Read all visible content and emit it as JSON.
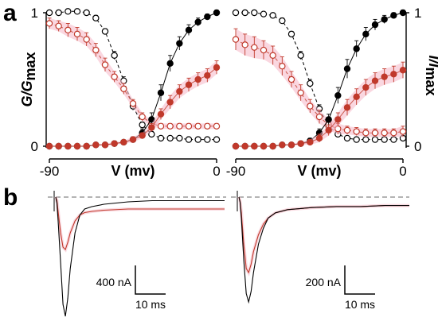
{
  "panel_a_letter": "a",
  "panel_b_letter": "b",
  "left_ylabel_main": "G/G",
  "left_ylabel_sub": "max",
  "right_ylabel_main": "I/I",
  "right_ylabel_sub": "max",
  "scale_left_current": "400 nA",
  "scale_left_time": "10 ms",
  "scale_right_current": "200 nA",
  "scale_right_time": "10 ms",
  "colors": {
    "control": "#000000",
    "treated": "#c0392b",
    "error_shade": "#f5b7c6",
    "dashed_ref": "#888888"
  },
  "chart_data": [
    {
      "type": "scatter",
      "panel": "a-left",
      "title": "",
      "xlabel": "V (mv)",
      "ylabel": "G/Gmax",
      "xlim": [
        -90,
        0
      ],
      "ylim": [
        0,
        1
      ],
      "xticks": [
        -90,
        0
      ],
      "yticks": [
        0,
        1
      ],
      "grid": false,
      "x": [
        -90,
        -85,
        -80,
        -75,
        -70,
        -65,
        -60,
        -55,
        -50,
        -45,
        -40,
        -35,
        -30,
        -25,
        -20,
        -15,
        -10,
        -5,
        0
      ],
      "series": [
        {
          "style": "open-black-circles",
          "fit": "dashed-boltzmann",
          "values": [
            1.0,
            1.0,
            1.01,
            1.01,
            1.0,
            0.96,
            0.86,
            0.68,
            0.49,
            0.3,
            0.16,
            0.09,
            0.06,
            0.06,
            0.06,
            0.05,
            0.05,
            0.05,
            0.05
          ],
          "errors": [
            0.01,
            0.01,
            0.01,
            0.01,
            0.01,
            0.02,
            0.02,
            0.03,
            0.03,
            0.03,
            0.02,
            0.02,
            0.01,
            0.01,
            0.01,
            0.01,
            0.01,
            0.01,
            0.01
          ]
        },
        {
          "style": "open-red-circles",
          "fit": "dashed-boltzmann",
          "values": [
            0.92,
            0.9,
            0.87,
            0.84,
            0.8,
            0.72,
            0.61,
            0.52,
            0.43,
            0.32,
            0.22,
            0.17,
            0.15,
            0.15,
            0.15,
            0.15,
            0.15,
            0.15,
            0.15
          ],
          "errors": [
            0.04,
            0.04,
            0.05,
            0.05,
            0.05,
            0.05,
            0.05,
            0.04,
            0.04,
            0.03,
            0.03,
            0.02,
            0.02,
            0.02,
            0.02,
            0.02,
            0.02,
            0.02,
            0.02
          ]
        },
        {
          "style": "filled-black-circles",
          "fit": "solid-boltzmann",
          "values": [
            0.0,
            0.0,
            0.0,
            0.0,
            0.0,
            0.01,
            0.01,
            0.02,
            0.03,
            0.05,
            0.1,
            0.2,
            0.4,
            0.62,
            0.77,
            0.87,
            0.93,
            0.97,
            1.0
          ],
          "errors": [
            0.0,
            0.0,
            0.0,
            0.0,
            0.0,
            0.0,
            0.01,
            0.01,
            0.01,
            0.02,
            0.03,
            0.05,
            0.06,
            0.06,
            0.05,
            0.04,
            0.03,
            0.02,
            0.02
          ]
        },
        {
          "style": "filled-red-circles",
          "fit": "solid-boltzmann",
          "values": [
            0.0,
            0.0,
            0.0,
            0.0,
            0.0,
            0.01,
            0.01,
            0.02,
            0.03,
            0.05,
            0.08,
            0.14,
            0.24,
            0.33,
            0.41,
            0.46,
            0.5,
            0.53,
            0.59
          ],
          "errors": [
            0.0,
            0.0,
            0.0,
            0.0,
            0.0,
            0.0,
            0.01,
            0.01,
            0.01,
            0.02,
            0.02,
            0.03,
            0.04,
            0.05,
            0.05,
            0.05,
            0.05,
            0.05,
            0.05
          ]
        }
      ]
    },
    {
      "type": "scatter",
      "panel": "a-right",
      "title": "",
      "xlabel": "V (mv)",
      "ylabel": "I/Imax",
      "xlim": [
        -90,
        0
      ],
      "ylim": [
        0,
        1
      ],
      "xticks": [
        -90,
        0
      ],
      "yticks": [
        0,
        1
      ],
      "grid": false,
      "x": [
        -90,
        -85,
        -80,
        -75,
        -70,
        -65,
        -60,
        -55,
        -50,
        -45,
        -40,
        -35,
        -30,
        -25,
        -20,
        -15,
        -10,
        -5,
        0
      ],
      "series": [
        {
          "style": "open-black-circles",
          "fit": "dashed-boltzmann",
          "values": [
            1.0,
            1.0,
            1.0,
            0.99,
            0.98,
            0.94,
            0.84,
            0.68,
            0.47,
            0.28,
            0.15,
            0.09,
            0.06,
            0.05,
            0.05,
            0.05,
            0.05,
            0.05,
            0.06
          ],
          "errors": [
            0.01,
            0.01,
            0.01,
            0.01,
            0.01,
            0.02,
            0.02,
            0.03,
            0.03,
            0.03,
            0.02,
            0.02,
            0.01,
            0.01,
            0.01,
            0.01,
            0.01,
            0.01,
            0.01
          ]
        },
        {
          "style": "open-red-circles",
          "fit": "dashed-boltzmann",
          "values": [
            0.8,
            0.76,
            0.74,
            0.72,
            0.68,
            0.6,
            0.5,
            0.4,
            0.3,
            0.22,
            0.16,
            0.13,
            0.12,
            0.11,
            0.1,
            0.1,
            0.1,
            0.1,
            0.11
          ],
          "errors": [
            0.08,
            0.08,
            0.08,
            0.07,
            0.07,
            0.07,
            0.06,
            0.06,
            0.05,
            0.05,
            0.04,
            0.04,
            0.03,
            0.03,
            0.03,
            0.03,
            0.03,
            0.03,
            0.04
          ]
        },
        {
          "style": "filled-black-circles",
          "fit": "solid-boltzmann",
          "values": [
            0.0,
            0.0,
            0.0,
            0.0,
            0.0,
            0.01,
            0.01,
            0.02,
            0.04,
            0.1,
            0.2,
            0.38,
            0.58,
            0.73,
            0.84,
            0.91,
            0.95,
            0.98,
            1.0
          ],
          "errors": [
            0.0,
            0.0,
            0.0,
            0.0,
            0.0,
            0.0,
            0.01,
            0.01,
            0.02,
            0.03,
            0.04,
            0.06,
            0.07,
            0.06,
            0.05,
            0.04,
            0.03,
            0.02,
            0.02
          ]
        },
        {
          "style": "filled-red-circles",
          "fit": "solid-boltzmann",
          "values": [
            0.0,
            0.0,
            0.0,
            0.0,
            0.0,
            0.01,
            0.01,
            0.02,
            0.03,
            0.06,
            0.12,
            0.2,
            0.29,
            0.37,
            0.44,
            0.49,
            0.52,
            0.54,
            0.57
          ],
          "errors": [
            0.0,
            0.0,
            0.0,
            0.0,
            0.0,
            0.0,
            0.01,
            0.01,
            0.02,
            0.03,
            0.04,
            0.05,
            0.06,
            0.06,
            0.06,
            0.06,
            0.06,
            0.06,
            0.06
          ]
        }
      ]
    },
    {
      "type": "line",
      "panel": "b-left",
      "title": "",
      "xlabel": "",
      "ylabel": "",
      "scale_bar": {
        "current": "400 nA",
        "time": "10 ms"
      },
      "series": [
        {
          "style": "black-trace",
          "t_ms": [
            0,
            0.5,
            1,
            2,
            3,
            4,
            5,
            6,
            8,
            10,
            12,
            15,
            20,
            30,
            40,
            50,
            60,
            70
          ],
          "i_rel": [
            0,
            -0.05,
            -0.2,
            -0.55,
            -0.9,
            -1.0,
            -0.85,
            -0.6,
            -0.3,
            -0.15,
            -0.1,
            -0.08,
            -0.06,
            -0.04,
            -0.03,
            -0.03,
            -0.03,
            -0.03
          ]
        },
        {
          "style": "red-trace",
          "t_ms": [
            0,
            0.5,
            1,
            2,
            3,
            4,
            5,
            6,
            8,
            10,
            12,
            15,
            20,
            30,
            40,
            50,
            60,
            70
          ],
          "i_rel": [
            0,
            -0.03,
            -0.12,
            -0.3,
            -0.42,
            -0.44,
            -0.38,
            -0.3,
            -0.2,
            -0.15,
            -0.13,
            -0.12,
            -0.11,
            -0.1,
            -0.1,
            -0.1,
            -0.1,
            -0.1
          ]
        }
      ]
    },
    {
      "type": "line",
      "panel": "b-right",
      "title": "",
      "xlabel": "",
      "ylabel": "",
      "scale_bar": {
        "current": "200 nA",
        "time": "10 ms"
      },
      "series": [
        {
          "style": "black-trace",
          "t_ms": [
            0,
            0.5,
            1,
            2,
            3,
            4,
            5,
            6,
            8,
            10,
            12,
            15,
            20,
            30,
            40,
            50,
            60,
            70
          ],
          "i_rel": [
            0,
            -0.05,
            -0.2,
            -0.6,
            -0.92,
            -1.0,
            -0.9,
            -0.72,
            -0.45,
            -0.3,
            -0.2,
            -0.15,
            -0.12,
            -0.1,
            -0.09,
            -0.09,
            -0.08,
            -0.08
          ]
        },
        {
          "style": "red-trace",
          "t_ms": [
            0,
            0.5,
            1,
            2,
            3,
            4,
            5,
            6,
            8,
            10,
            12,
            15,
            20,
            30,
            40,
            50,
            60,
            70
          ],
          "i_rel": [
            0,
            -0.04,
            -0.15,
            -0.45,
            -0.68,
            -0.72,
            -0.64,
            -0.52,
            -0.36,
            -0.26,
            -0.2,
            -0.15,
            -0.12,
            -0.1,
            -0.09,
            -0.09,
            -0.08,
            -0.08
          ]
        }
      ]
    }
  ]
}
